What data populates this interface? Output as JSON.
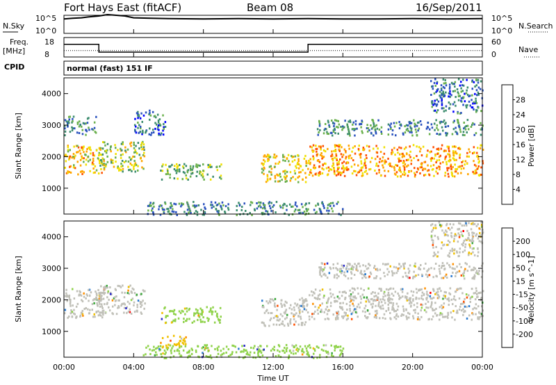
{
  "header": {
    "station": "Fort Hays East (fitACF)",
    "beam": "Beam 08",
    "date": "16/Sep/2011"
  },
  "top_panels": {
    "nsky_label": "N.Sky",
    "nsearch_label": "N.Search",
    "noise_ticks": [
      "10^5",
      "10^0"
    ],
    "freq_label_1": "Freq.",
    "freq_label_2": "[MHz]",
    "freq_ticks": [
      "18",
      "8"
    ],
    "nave_label": "Nave",
    "nave_ticks": [
      "60",
      "0"
    ],
    "cpid_label": "CPID",
    "cpid_text": "normal (fast) 151 IF"
  },
  "x_axis": {
    "label": "Time UT",
    "ticks": [
      "00:00",
      "04:00",
      "08:00",
      "12:00",
      "16:00",
      "20:00",
      "00:00"
    ]
  },
  "colors": {
    "power": [
      "#0000ff",
      "#2a52be",
      "#3c8c6e",
      "#6ab04c",
      "#f0e000",
      "#ffa500",
      "#ff5000",
      "#ff0000"
    ],
    "velocity": [
      "#2828c8",
      "#2a7ad0",
      "#3aa83a",
      "#8fd24a",
      "#c0c0b8",
      "#f0c000",
      "#ff9000",
      "#ff5000",
      "#ff0000"
    ]
  },
  "chart_data": [
    {
      "type": "line",
      "panel": "noise",
      "x_hours": [
        0,
        0.5,
        1,
        1.5,
        2,
        2.5,
        3,
        3.5,
        4,
        5,
        6,
        8,
        10,
        12,
        14,
        16,
        18,
        20,
        22,
        24
      ],
      "series": [
        {
          "name": "N.Sky",
          "values": [
            4.0,
            4.2,
            4.3,
            4.6,
            4.8,
            5.2,
            5.0,
            4.8,
            4.3,
            4.2,
            4.1,
            4.0,
            4.1,
            4.0,
            4.1,
            4.0,
            4.0,
            4.1,
            4.0,
            4.1
          ]
        }
      ],
      "ylim": [
        0,
        5
      ]
    },
    {
      "type": "line",
      "panel": "frequency",
      "x_hours": [
        0,
        2,
        2,
        14,
        14,
        24
      ],
      "series": [
        {
          "name": "Freq.",
          "values": [
            14.5,
            14.5,
            10.5,
            10.5,
            14.5,
            14.5
          ]
        },
        {
          "name": "Nave",
          "values": [
            20,
            20,
            20,
            20,
            20,
            20
          ]
        }
      ],
      "ylim": [
        8,
        18
      ]
    },
    {
      "type": "heatmap",
      "panel": "power",
      "ylabel": "Slant Range [km]",
      "xlabel": "",
      "xlim": [
        0,
        24
      ],
      "ylim": [
        180,
        4500
      ],
      "yticks": [
        "1000",
        "2000",
        "3000",
        "4000"
      ],
      "colorbar_label": "Power [dB]",
      "colorbar_ticks": [
        "4",
        "8",
        "12",
        "16",
        "20",
        "24",
        "28"
      ],
      "clim": [
        0,
        32
      ],
      "regions": [
        {
          "x": [
            0,
            2.2
          ],
          "y": [
            1450,
            2400
          ],
          "value": 20
        },
        {
          "x": [
            0,
            1.8
          ],
          "y": [
            2700,
            3300
          ],
          "value": 10
        },
        {
          "x": [
            2,
            4.6
          ],
          "y": [
            1550,
            2500
          ],
          "value": 16
        },
        {
          "x": [
            4,
            5.8
          ],
          "y": [
            2700,
            3500
          ],
          "value": 8
        },
        {
          "x": [
            5.5,
            9
          ],
          "y": [
            1300,
            1800
          ],
          "value": 14
        },
        {
          "x": [
            11.3,
            14
          ],
          "y": [
            1200,
            2100
          ],
          "value": 18
        },
        {
          "x": [
            14,
            24
          ],
          "y": [
            1400,
            2400
          ],
          "value": 22
        },
        {
          "x": [
            14.5,
            24
          ],
          "y": [
            2700,
            3200
          ],
          "value": 10
        },
        {
          "x": [
            21,
            24
          ],
          "y": [
            3400,
            4500
          ],
          "value": 8
        },
        {
          "x": [
            4.5,
            16
          ],
          "y": [
            180,
            600
          ],
          "value": 10
        }
      ]
    },
    {
      "type": "heatmap",
      "panel": "velocity",
      "ylabel": "Slant Range [km]",
      "xlabel": "Time UT",
      "xlim": [
        0,
        24
      ],
      "ylim": [
        180,
        4500
      ],
      "yticks": [
        "1000",
        "2000",
        "3000",
        "4000"
      ],
      "colorbar_label": "Velocity [m s^-1]",
      "colorbar_ticks": [
        "200",
        "100",
        "50",
        "15",
        "-15",
        "-50",
        "-100",
        "-200"
      ],
      "clim": [
        -250,
        250
      ],
      "regions": [
        {
          "x": [
            0,
            2.2
          ],
          "y": [
            1450,
            2400
          ],
          "value": 0
        },
        {
          "x": [
            2,
            4.6
          ],
          "y": [
            1550,
            2500
          ],
          "value": 0
        },
        {
          "x": [
            5.5,
            9
          ],
          "y": [
            1300,
            1800
          ],
          "value": -40
        },
        {
          "x": [
            11.3,
            14
          ],
          "y": [
            1200,
            2100
          ],
          "value": 0
        },
        {
          "x": [
            14,
            24
          ],
          "y": [
            1400,
            2400
          ],
          "value": 0
        },
        {
          "x": [
            14.5,
            24
          ],
          "y": [
            2700,
            3200
          ],
          "value": 0
        },
        {
          "x": [
            21,
            24
          ],
          "y": [
            3400,
            4500
          ],
          "value": 20
        },
        {
          "x": [
            4.5,
            16
          ],
          "y": [
            180,
            600
          ],
          "value": -60
        },
        {
          "x": [
            5.5,
            7
          ],
          "y": [
            500,
            900
          ],
          "value": 60
        }
      ]
    }
  ]
}
